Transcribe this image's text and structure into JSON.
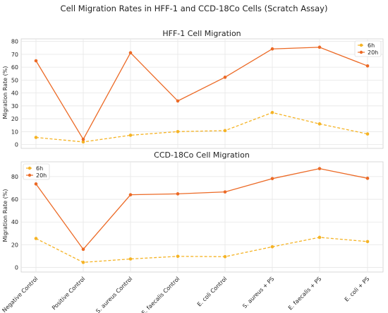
{
  "figure_title": "Cell Migration Rates in HFF-1 and CCD-18Co Cells (Scratch Assay)",
  "colors": {
    "series_6h": "#f5b324",
    "series_20h": "#ec6a26"
  },
  "chart_data": [
    {
      "type": "line",
      "title": "HFF-1 Cell Migration",
      "xlabel": "",
      "ylabel": "Migration Rate (%)",
      "ylim": [
        -3,
        82
      ],
      "yticks": [
        0,
        10,
        20,
        30,
        40,
        50,
        60,
        70,
        80
      ],
      "grid": true,
      "legend": "top-right",
      "categories": [
        "Negative Control",
        "Positive Control",
        "S. aureus Control",
        "E. faecalis Control",
        "E. coli Control",
        "S. aureus + PS",
        "E. faecalis + PS",
        "E. coli + PS"
      ],
      "series": [
        {
          "name": "6h",
          "style": "dashed",
          "values": [
            5.5,
            2.0,
            7.2,
            10.0,
            10.8,
            24.8,
            16.0,
            8.2
          ]
        },
        {
          "name": "20h",
          "style": "solid",
          "values": [
            65.0,
            4.0,
            71.2,
            33.8,
            52.2,
            74.2,
            75.5,
            61.0
          ]
        }
      ]
    },
    {
      "type": "line",
      "title": "CCD-18Co Cell Migration",
      "xlabel": "",
      "ylabel": "Migration Rate (%)",
      "ylim": [
        -4,
        93
      ],
      "yticks": [
        0,
        20,
        40,
        60,
        80
      ],
      "grid": true,
      "legend": "top-left",
      "categories": [
        "Negative Control",
        "Positive Control",
        "S. aureus Control",
        "E. faecalis Control",
        "E. coli Control",
        "S. aureus + PS",
        "E. faecalis + PS",
        "E. coli + PS"
      ],
      "series": [
        {
          "name": "6h",
          "style": "dashed",
          "values": [
            25.5,
            4.5,
            7.5,
            9.8,
            9.5,
            18.2,
            26.5,
            22.8
          ]
        },
        {
          "name": "20h",
          "style": "solid",
          "values": [
            73.5,
            16.0,
            64.0,
            64.8,
            66.5,
            78.2,
            87.0,
            78.5
          ]
        }
      ]
    }
  ]
}
